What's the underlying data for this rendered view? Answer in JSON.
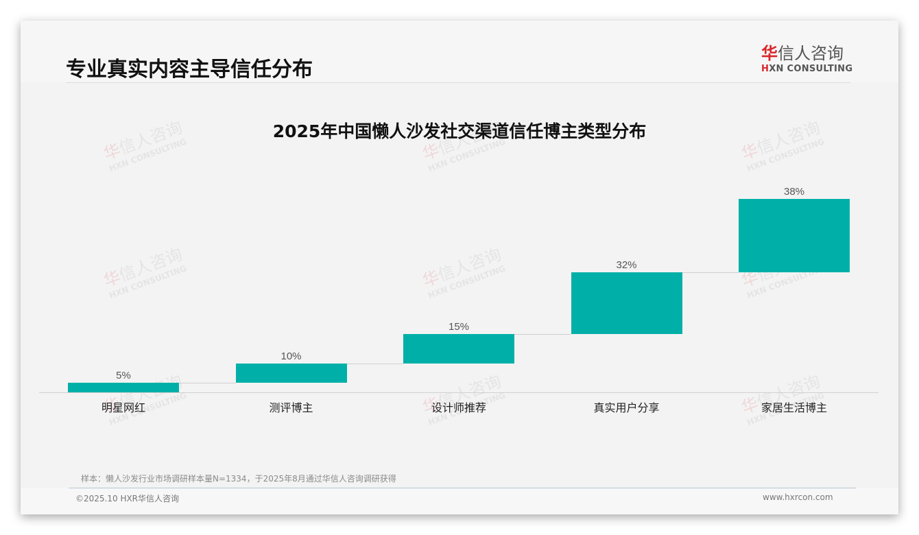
{
  "header": {
    "title": "专业真实内容主导信任分布",
    "logo": {
      "cn_accent": "华",
      "cn_rest": "信人咨询",
      "en_accent": "H",
      "en_rest": "XN CONSULTING"
    }
  },
  "watermark": {
    "cn_accent": "华",
    "cn_rest": "信人咨询",
    "en": "HXN CONSULTING"
  },
  "chart_data": {
    "type": "bar",
    "title": "2025年中国懒人沙发社交渠道信任博主类型分布",
    "subtype": "waterfall",
    "categories": [
      "明星网红",
      "测评博主",
      "设计师推荐",
      "真实用户分享",
      "家居生活博主"
    ],
    "values": [
      5,
      10,
      15,
      32,
      38
    ],
    "value_labels": [
      "5%",
      "10%",
      "15%",
      "32%",
      "38%"
    ],
    "unit": "%",
    "xlabel": "",
    "ylabel": "",
    "ylim": [
      0,
      100
    ],
    "grid": false,
    "legend": "none",
    "bar_color": "#00b0a8"
  },
  "footer": {
    "note": "样本：懒人沙发行业市场调研样本量N=1334，于2025年8月通过华信人咨询调研获得",
    "copyright": "©2025.10 HXR华信人咨询",
    "website": "www.hxrcon.com"
  }
}
